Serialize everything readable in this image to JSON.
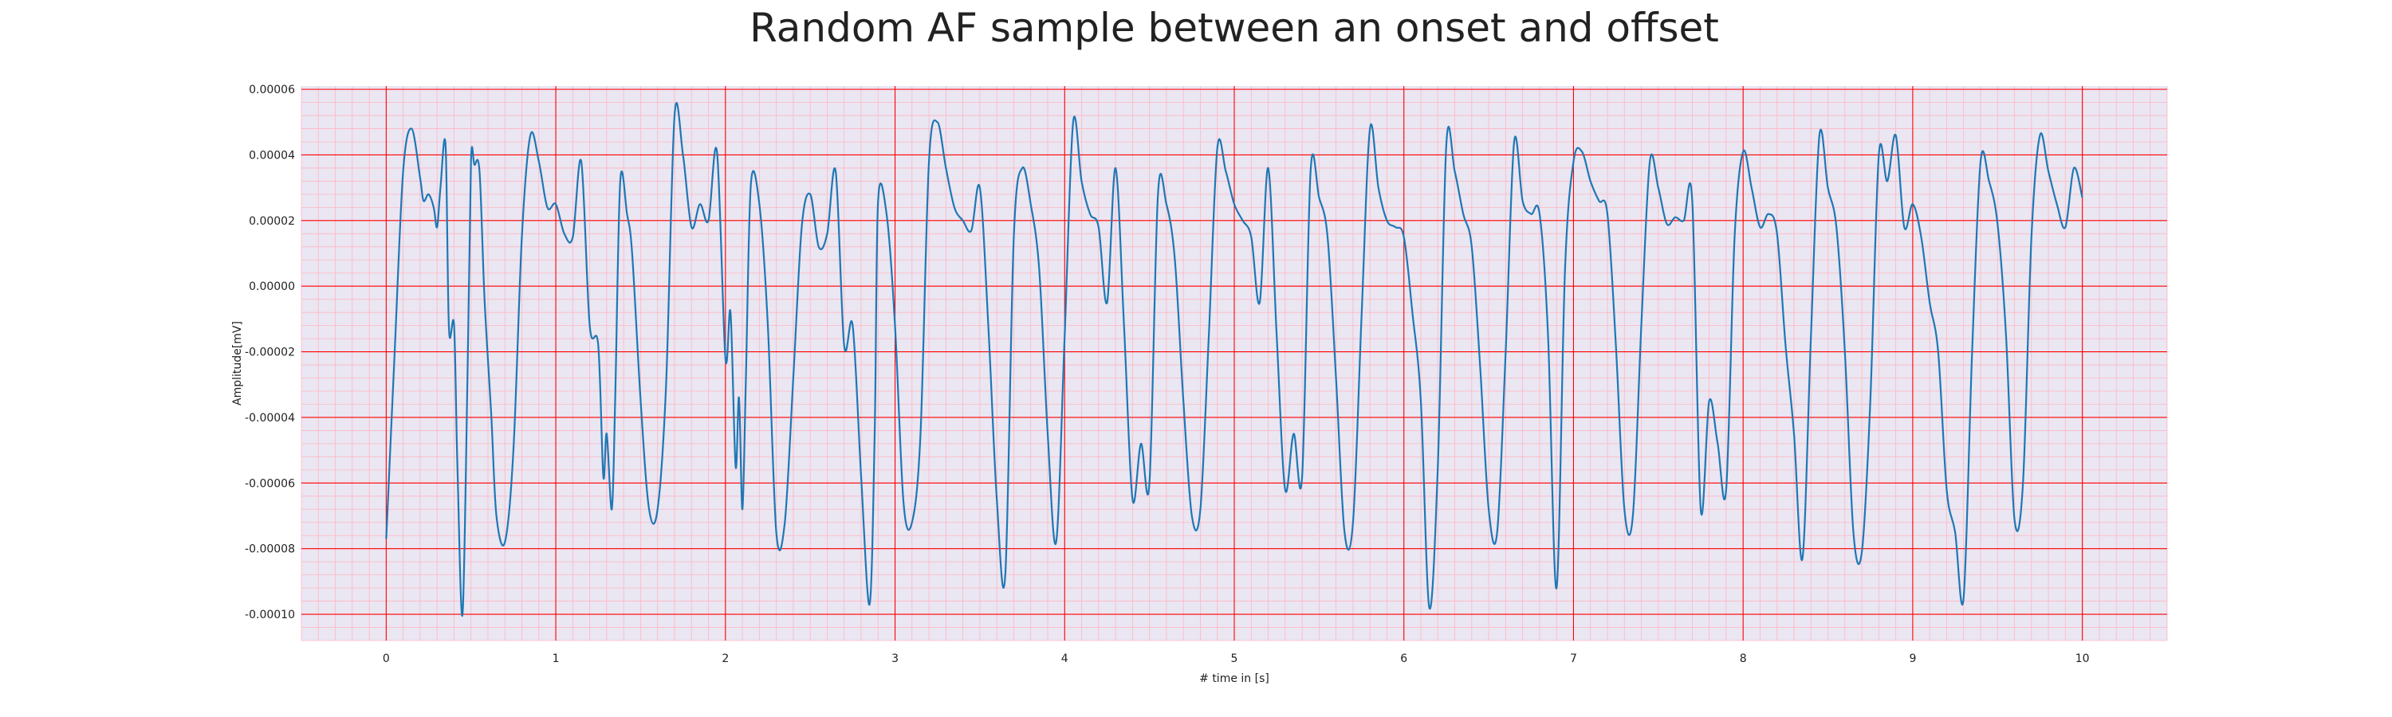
{
  "chart_data": {
    "type": "line",
    "title": "Random AF sample between an onset and offset",
    "xlabel": "# time in [s]",
    "ylabel": "Amplitude[mV]",
    "xlim": [
      -0.5,
      10.5
    ],
    "ylim": [
      -0.000108,
      6.1e-05
    ],
    "x_ticks": [
      0,
      1,
      2,
      3,
      4,
      5,
      6,
      7,
      8,
      9,
      10
    ],
    "x_tick_labels": [
      "0",
      "1",
      "2",
      "3",
      "4",
      "5",
      "6",
      "7",
      "8",
      "9",
      "10"
    ],
    "y_ticks": [
      -0.0001,
      -8e-05,
      -6e-05,
      -4e-05,
      -2e-05,
      0.0,
      2e-05,
      4e-05,
      6e-05
    ],
    "y_tick_labels": [
      "-0.00010",
      "-0.00008",
      "-0.00006",
      "-0.00004",
      "-0.00002",
      "0.00000",
      "0.00002",
      "0.00004",
      "0.00006"
    ],
    "grid": true,
    "minor_grid": true,
    "colors": {
      "background": "#eae6f2",
      "major_grid": "#ff0000",
      "minor_grid": "#ffb6c1",
      "line": "#1f77b4"
    },
    "series": [
      {
        "x": [
          0.0,
          0.05,
          0.1,
          0.15,
          0.2,
          0.22,
          0.25,
          0.28,
          0.3,
          0.32,
          0.35,
          0.37,
          0.4,
          0.42,
          0.45,
          0.48,
          0.5,
          0.52,
          0.55,
          0.58,
          0.62,
          0.65,
          0.7,
          0.75,
          0.8,
          0.85,
          0.9,
          0.95,
          1.0,
          1.05,
          1.1,
          1.15,
          1.2,
          1.25,
          1.28,
          1.3,
          1.33,
          1.35,
          1.38,
          1.42,
          1.45,
          1.5,
          1.55,
          1.6,
          1.65,
          1.7,
          1.75,
          1.8,
          1.85,
          1.9,
          1.95,
          2.0,
          2.03,
          2.06,
          2.08,
          2.1,
          2.12,
          2.15,
          2.2,
          2.25,
          2.3,
          2.35,
          2.4,
          2.45,
          2.5,
          2.55,
          2.6,
          2.65,
          2.7,
          2.75,
          2.8,
          2.85,
          2.88,
          2.9,
          2.95,
          3.0,
          3.05,
          3.1,
          3.15,
          3.2,
          3.25,
          3.3,
          3.35,
          3.4,
          3.45,
          3.5,
          3.55,
          3.6,
          3.65,
          3.7,
          3.75,
          3.8,
          3.85,
          3.9,
          3.95,
          4.0,
          4.05,
          4.1,
          4.15,
          4.2,
          4.25,
          4.3,
          4.35,
          4.4,
          4.45,
          4.5,
          4.55,
          4.6,
          4.65,
          4.7,
          4.75,
          4.8,
          4.85,
          4.9,
          4.95,
          5.0,
          5.05,
          5.1,
          5.15,
          5.2,
          5.25,
          5.3,
          5.35,
          5.4,
          5.45,
          5.5,
          5.55,
          5.6,
          5.65,
          5.7,
          5.75,
          5.8,
          5.85,
          5.9,
          5.95,
          6.0,
          6.05,
          6.1,
          6.15,
          6.2,
          6.25,
          6.3,
          6.35,
          6.4,
          6.45,
          6.5,
          6.55,
          6.6,
          6.65,
          6.7,
          6.75,
          6.8,
          6.85,
          6.9,
          6.95,
          7.0,
          7.05,
          7.1,
          7.15,
          7.2,
          7.25,
          7.3,
          7.35,
          7.4,
          7.45,
          7.5,
          7.55,
          7.6,
          7.65,
          7.7,
          7.75,
          7.8,
          7.85,
          7.9,
          7.95,
          8.0,
          8.05,
          8.1,
          8.15,
          8.2,
          8.25,
          8.3,
          8.35,
          8.4,
          8.45,
          8.5,
          8.55,
          8.6,
          8.65,
          8.7,
          8.75,
          8.8,
          8.85,
          8.9,
          8.95,
          9.0,
          9.05,
          9.1,
          9.15,
          9.2,
          9.25,
          9.3,
          9.35,
          9.4,
          9.45,
          9.5,
          9.55,
          9.6,
          9.65,
          9.7,
          9.75,
          9.8,
          9.85,
          9.9,
          9.95,
          10.0
        ],
        "values": [
          -7.7e-05,
          -2e-05,
          3.5e-05,
          4.8e-05,
          3.3e-05,
          2.6e-05,
          2.8e-05,
          2.4e-05,
          1.8e-05,
          3e-05,
          4.3e-05,
          -1.3e-05,
          -1.2e-05,
          -5.5e-05,
          -0.0001,
          -2.5e-05,
          3.8e-05,
          3.7e-05,
          3.5e-05,
          -4e-06,
          -4e-05,
          -7e-05,
          -7.8e-05,
          -5e-05,
          1.5e-05,
          4.6e-05,
          3.8e-05,
          2.4e-05,
          2.5e-05,
          1.6e-05,
          1.5e-05,
          3.8e-05,
          -1.2e-05,
          -1.8e-05,
          -5.8e-05,
          -4.5e-05,
          -6.8e-05,
          -3.5e-05,
          3.2e-05,
          2.2e-05,
          1e-05,
          -3.5e-05,
          -6.8e-05,
          -6.8e-05,
          -3e-05,
          5.2e-05,
          4e-05,
          1.8e-05,
          2.5e-05,
          2e-05,
          4.1e-05,
          -2.2e-05,
          -8e-06,
          -5.5e-05,
          -3.4e-05,
          -6.8e-05,
          -3e-05,
          3.1e-05,
          2.5e-05,
          -1.2e-05,
          -7.5e-05,
          -7.2e-05,
          -2.8e-05,
          1.8e-05,
          2.8e-05,
          1.2e-05,
          1.6e-05,
          3.5e-05,
          -1.8e-05,
          -1.2e-05,
          -5.8e-05,
          -9.7e-05,
          -4.5e-05,
          2.6e-05,
          2.2e-05,
          -1.2e-05,
          -6.6e-05,
          -7.2e-05,
          -4.5e-05,
          3.8e-05,
          5e-05,
          3.6e-05,
          2.4e-05,
          2e-05,
          1.7e-05,
          3e-05,
          -1.2e-05,
          -6.5e-05,
          -8.8e-05,
          1.5e-05,
          3.6e-05,
          2.5e-05,
          5e-06,
          -4.5e-05,
          -7.8e-05,
          -1.5e-05,
          5e-05,
          3.2e-05,
          2.2e-05,
          1.8e-05,
          -5e-06,
          3.6e-05,
          -1.2e-05,
          -6.5e-05,
          -4.8e-05,
          -6e-05,
          2.8e-05,
          2.5e-05,
          8e-06,
          -3.5e-05,
          -7e-05,
          -6.8e-05,
          -1.5e-05,
          4.2e-05,
          3.5e-05,
          2.5e-05,
          2e-05,
          1.5e-05,
          -5e-06,
          3.6e-05,
          -1.5e-05,
          -6.2e-05,
          -4.5e-05,
          -5.8e-05,
          3.5e-05,
          2.7e-05,
          1.5e-05,
          -2.8e-05,
          -7.5e-05,
          -7.2e-05,
          -1e-05,
          4.8e-05,
          3e-05,
          2e-05,
          1.8e-05,
          1.5e-05,
          -8e-06,
          -3.5e-05,
          -9.8e-05,
          -5.5e-05,
          4.3e-05,
          3.5e-05,
          2.2e-05,
          1.2e-05,
          -2.5e-05,
          -6.8e-05,
          -7.5e-05,
          -2e-05,
          4.4e-05,
          2.6e-05,
          2.2e-05,
          2.2e-05,
          -1.5e-05,
          -9.2e-05,
          5e-06,
          3.8e-05,
          4.1e-05,
          3.2e-05,
          2.6e-05,
          2.2e-05,
          -1.8e-05,
          -6.8e-05,
          -7e-05,
          -1.2e-05,
          3.8e-05,
          3e-05,
          1.9e-05,
          2.1e-05,
          2e-05,
          2.6e-05,
          -6.8e-05,
          -3.5e-05,
          -4.8e-05,
          -6.2e-05,
          1.5e-05,
          4.1e-05,
          3e-05,
          1.8e-05,
          2.2e-05,
          1.6e-05,
          -1.8e-05,
          -4.5e-05,
          -8.3e-05,
          -1.5e-05,
          4.6e-05,
          3e-05,
          1.8e-05,
          -2e-05,
          -7.5e-05,
          -8.1e-05,
          -3.5e-05,
          4e-05,
          3.2e-05,
          4.6e-05,
          1.8e-05,
          2.5e-05,
          1.5e-05,
          -5e-06,
          -2e-05,
          -6.2e-05,
          -7.5e-05,
          -9.5e-05,
          -2e-05,
          3.8e-05,
          3.2e-05,
          1.9e-05,
          -1.5e-05,
          -7.1e-05,
          -6e-05,
          1.5e-05,
          4.6e-05,
          3.5e-05,
          2.5e-05,
          1.8e-05,
          3.6e-05,
          2.7e-05
        ]
      }
    ]
  }
}
